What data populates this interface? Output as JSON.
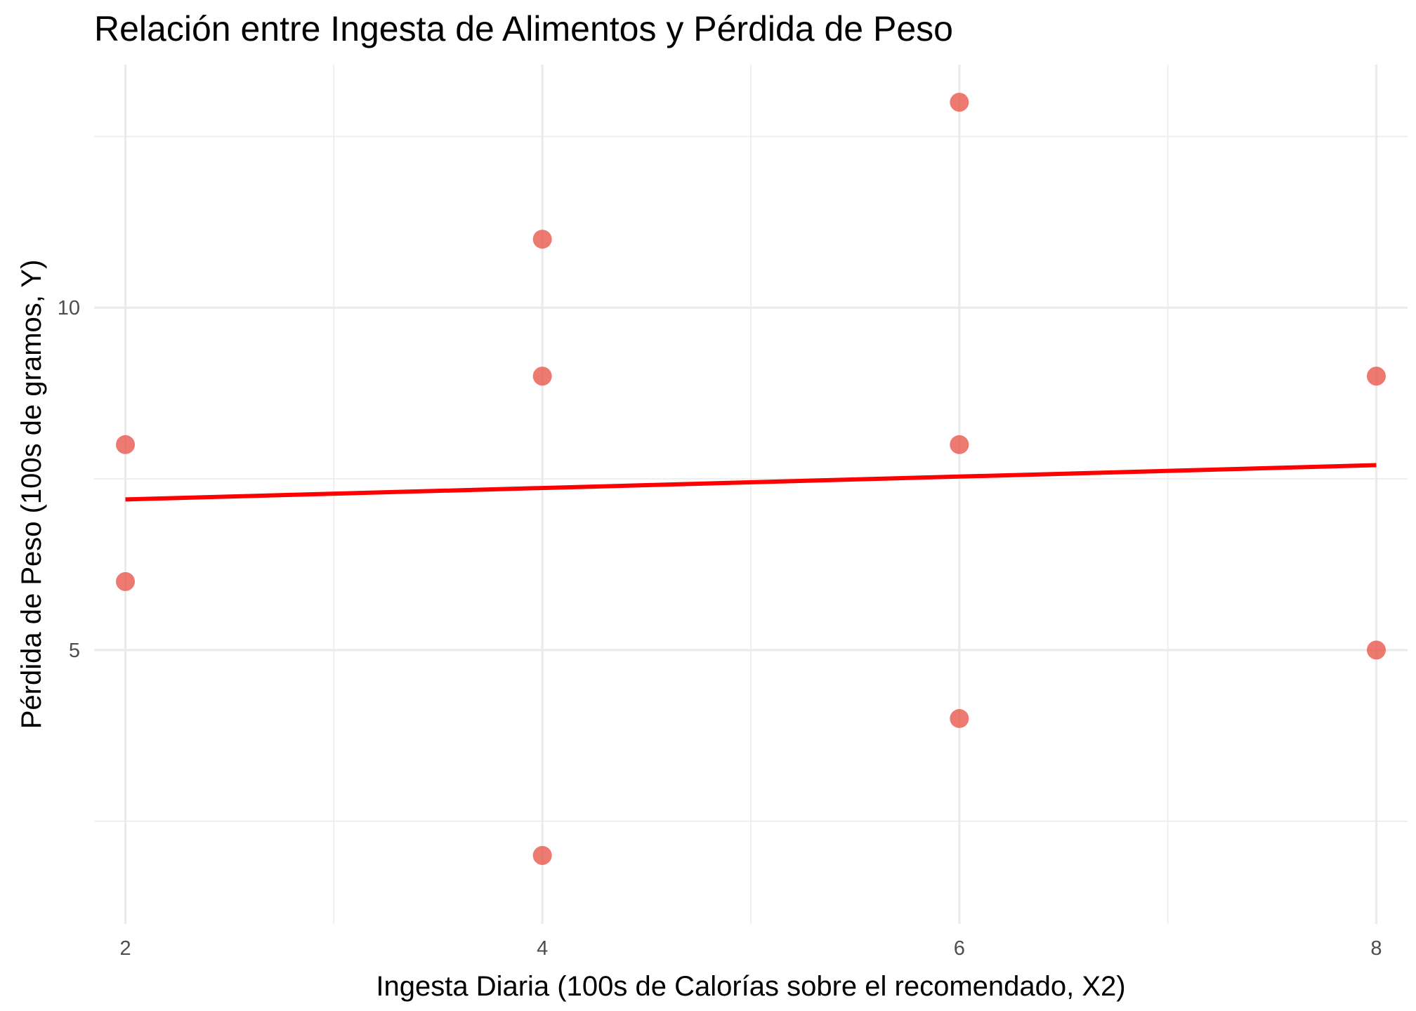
{
  "chart_data": {
    "type": "scatter",
    "title": "Relación entre Ingesta de Alimentos y Pérdida de Peso",
    "xlabel": "Ingesta Diaria (100s de Calorías sobre el recomendado, X2)",
    "ylabel": "Pérdida de Peso (100s de gramos, Y)",
    "xlim": [
      1.85,
      8.15
    ],
    "ylim": [
      1.0,
      13.55
    ],
    "x_ticks": [
      2,
      4,
      6,
      8
    ],
    "x_tick_labels": [
      "2",
      "4",
      "6",
      "8"
    ],
    "x_minor_ticks": [
      3,
      5,
      7
    ],
    "y_ticks": [
      5,
      10
    ],
    "y_tick_labels": [
      "5",
      "10"
    ],
    "y_minor_ticks": [
      2.5,
      7.5,
      12.5
    ],
    "grid": true,
    "legend": "none",
    "colors": {
      "points": "#e8594c",
      "fit_line": "#ff0000",
      "grid": "#ebebeb"
    },
    "points": [
      {
        "x": 2,
        "y": 8
      },
      {
        "x": 2,
        "y": 6
      },
      {
        "x": 4,
        "y": 11
      },
      {
        "x": 4,
        "y": 9
      },
      {
        "x": 4,
        "y": 2
      },
      {
        "x": 6,
        "y": 13
      },
      {
        "x": 6,
        "y": 8
      },
      {
        "x": 6,
        "y": 4
      },
      {
        "x": 8,
        "y": 9
      },
      {
        "x": 8,
        "y": 5
      }
    ],
    "fit_line": {
      "x": [
        2,
        8
      ],
      "y": [
        7.2,
        7.7
      ]
    }
  }
}
